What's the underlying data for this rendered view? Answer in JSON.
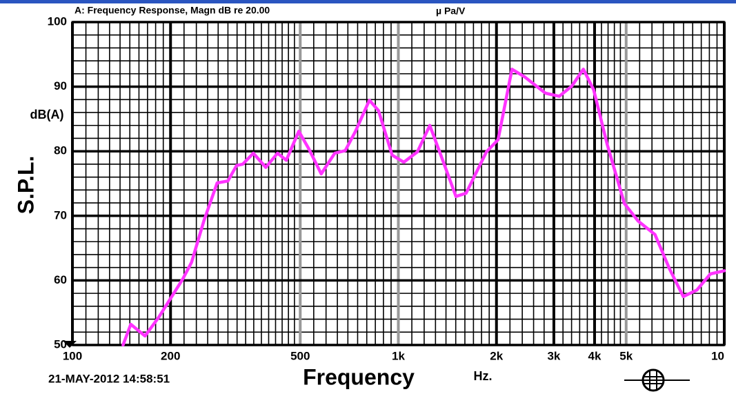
{
  "chart_data": {
    "type": "line",
    "title": "A: Frequency Response, Magn dB re 20.00",
    "unit_note": "µ Pa/V",
    "y_label": "S.P.L.",
    "y_unit": "dB(A)",
    "x_label": "Frequency",
    "x_unit": "Hz.",
    "timestamp": "21-MAY-2012 14:58:51",
    "x_log": true,
    "xlim": [
      100,
      10000
    ],
    "ylim": [
      50,
      100
    ],
    "xticks": [
      100,
      200,
      500,
      {
        "value": 1000,
        "label": "1k"
      },
      {
        "value": 2000,
        "label": "2k"
      },
      {
        "value": 3000,
        "label": "3k"
      },
      {
        "value": 4000,
        "label": "4k"
      },
      {
        "value": 5000,
        "label": "5k"
      },
      {
        "value": 10000,
        "label": "10"
      }
    ],
    "yticks": [
      50,
      60,
      70,
      80,
      90,
      100
    ],
    "x_grid": [
      110,
      120,
      130,
      140,
      150,
      160,
      170,
      180,
      190,
      220,
      240,
      260,
      280,
      300,
      320,
      340,
      360,
      380,
      400,
      420,
      440,
      460,
      480,
      550,
      600,
      650,
      700,
      750,
      800,
      850,
      900,
      950,
      1100,
      1200,
      1300,
      1400,
      1500,
      1600,
      1700,
      1800,
      1900,
      2200,
      2400,
      2600,
      2800,
      3200,
      3400,
      3600,
      3800,
      4200,
      4400,
      4600,
      4800,
      5500,
      6000,
      6500,
      7000,
      7500,
      8000,
      8500,
      9000,
      9500
    ],
    "y_grid": [
      52,
      54,
      56,
      58,
      62,
      64,
      66,
      68,
      72,
      74,
      76,
      78,
      82,
      84,
      86,
      88,
      92,
      94,
      96,
      98
    ],
    "grid": true,
    "x": [
      143,
      151,
      167,
      184,
      218,
      232,
      253,
      278,
      300,
      319,
      333,
      359,
      392,
      426,
      453,
      495,
      531,
      580,
      638,
      687,
      739,
      815,
      869,
      957,
      1039,
      1144,
      1249,
      1350,
      1502,
      1614,
      1863,
      2023,
      2231,
      2443,
      2826,
      3116,
      3406,
      3695,
      3975,
      4376,
      4938,
      5438,
      6129,
      6790,
      7483,
      8235,
      9063,
      10000
    ],
    "series": [
      {
        "color": "#ff33ff",
        "values": [
          50.0,
          53.2,
          51.4,
          54.3,
          60.2,
          62.8,
          69.2,
          75.1,
          75.4,
          77.8,
          78.0,
          79.7,
          77.5,
          79.7,
          78.6,
          83.1,
          80.4,
          76.5,
          79.7,
          80.1,
          83.1,
          87.9,
          86.3,
          79.4,
          78.3,
          79.9,
          84.0,
          79.4,
          73.0,
          73.5,
          79.9,
          81.8,
          92.7,
          91.5,
          89.0,
          88.5,
          90.1,
          92.7,
          89.5,
          81.0,
          71.9,
          69.2,
          67.1,
          61.8,
          57.5,
          58.5,
          61.0,
          61.5
        ]
      }
    ]
  }
}
